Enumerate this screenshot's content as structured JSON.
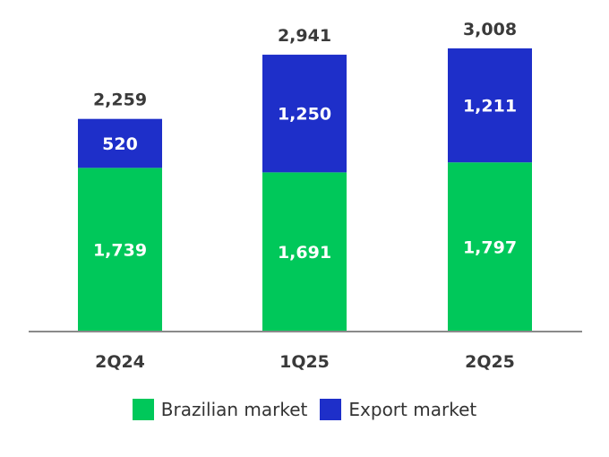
{
  "chart_data": {
    "type": "bar",
    "stacked": true,
    "categories": [
      "2Q24",
      "1Q25",
      "2Q25"
    ],
    "series": [
      {
        "name": "Brazilian market",
        "values": [
          1739,
          1691,
          1797
        ],
        "labels": [
          "1,739",
          "1,691",
          "1,797"
        ],
        "color": "#00C85A"
      },
      {
        "name": "Export market",
        "values": [
          520,
          1250,
          1211
        ],
        "labels": [
          "520",
          "1,250",
          "1,211"
        ],
        "color": "#1E2FC9"
      }
    ],
    "totals": [
      2259,
      2941,
      3008
    ],
    "total_labels": [
      "2,259",
      "2,941",
      "3,008"
    ],
    "ylim": [
      0,
      3008
    ],
    "grid": false,
    "legend_position": "bottom-center",
    "axis_color": "#8a8a8a"
  }
}
